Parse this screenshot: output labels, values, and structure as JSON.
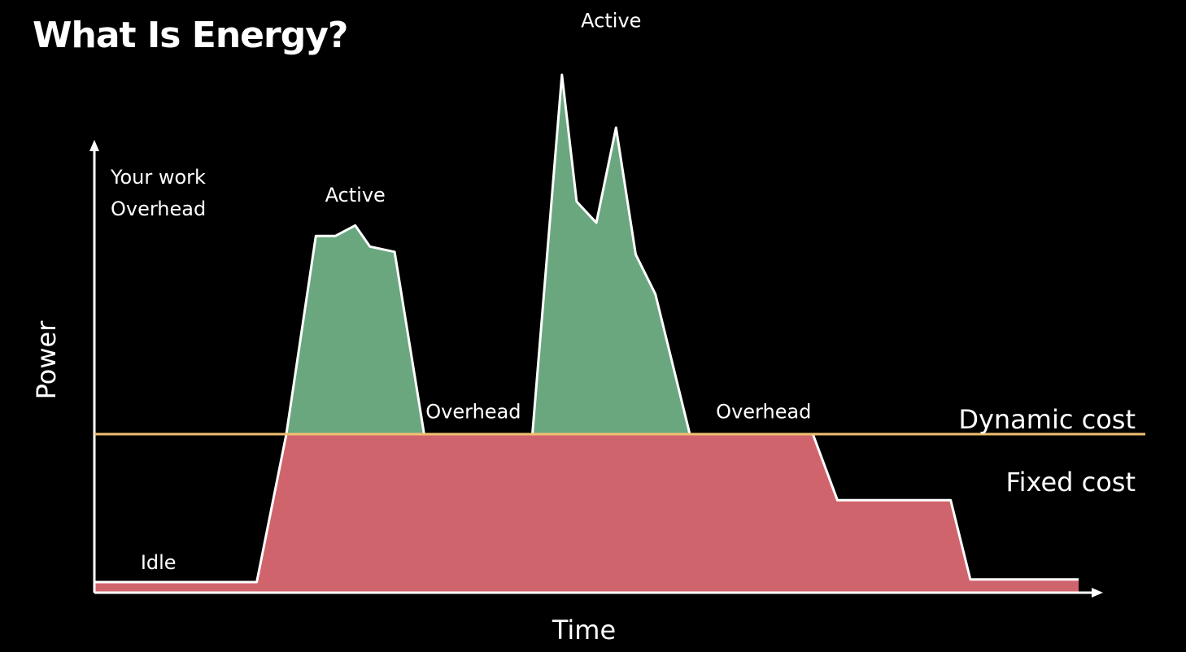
{
  "title": "What Is Energy?",
  "colors": {
    "background": "#000000",
    "your_work": "#6aa77f",
    "overhead": "#d0646d",
    "threshold": "#f0c070",
    "axis": "#ffffff"
  },
  "chart_data": {
    "type": "area",
    "xlabel": "Time",
    "ylabel": "Power",
    "xlim": [
      0,
      100
    ],
    "ylim": [
      0,
      100
    ],
    "grid": false,
    "legend": {
      "placement": "top-left",
      "entries": [
        {
          "name": "Your work",
          "color": "#6aa77f"
        },
        {
          "name": "Overhead",
          "color": "#d0646d"
        }
      ]
    },
    "threshold": {
      "y": 30,
      "above_label": "Dynamic cost",
      "below_label": "Fixed cost"
    },
    "series": [
      {
        "name": "Overhead",
        "color": "#d0646d",
        "x": [
          0,
          16.5,
          19.5,
          73,
          75.5,
          87,
          89,
          100
        ],
        "y": [
          2,
          2,
          30,
          30,
          17.5,
          17.5,
          2.5,
          2.5
        ]
      },
      {
        "name": "Your work",
        "color": "#6aa77f",
        "segments": [
          {
            "x": [
              19.5,
              22.5,
              24.5,
              26.5,
              28,
              30.5,
              33.5
            ],
            "y": [
              30,
              67.5,
              67.5,
              69.5,
              65.5,
              64.5,
              30
            ]
          },
          {
            "x": [
              44.5,
              47.5,
              49,
              51,
              53,
              55,
              57,
              60.5
            ],
            "y": [
              30,
              98,
              74,
              70,
              88,
              64,
              56.5,
              30
            ]
          }
        ]
      }
    ],
    "annotations": [
      {
        "text": "Idle",
        "x": 6.5,
        "y": 4.5
      },
      {
        "text": "Active",
        "x": 26.5,
        "y": 74
      },
      {
        "text": "Overhead",
        "x": 38.5,
        "y": 33
      },
      {
        "text": "Active",
        "x": 52.5,
        "y": 107
      },
      {
        "text": "Overhead",
        "x": 68,
        "y": 33
      }
    ]
  }
}
